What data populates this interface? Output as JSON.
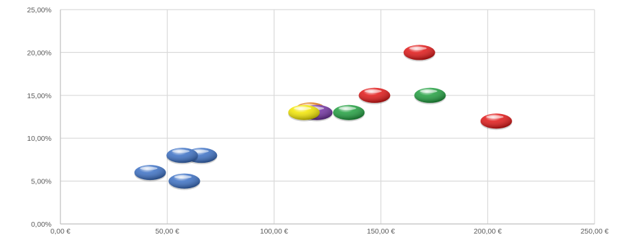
{
  "chart_data": {
    "type": "scatter",
    "title": "",
    "xlabel": "",
    "ylabel": "",
    "xlim": [
      0,
      250
    ],
    "ylim": [
      0,
      25
    ],
    "grid": true,
    "x_ticks": [
      "0,00 €",
      "50,00 €",
      "100,00 €",
      "150,00 €",
      "200,00 €",
      "250,00 €"
    ],
    "x_tick_values": [
      0,
      50,
      100,
      150,
      200,
      250
    ],
    "y_ticks": [
      "0,00%",
      "5,00%",
      "10,00%",
      "15,00%",
      "20,00%",
      "25,00%"
    ],
    "y_tick_values": [
      0,
      5,
      10,
      15,
      20,
      25
    ],
    "points": [
      {
        "x": 42,
        "y": 6,
        "color": "#3a6fc4"
      },
      {
        "x": 58,
        "y": 5,
        "color": "#3a6fc4"
      },
      {
        "x": 66,
        "y": 8,
        "color": "#3a6fc4"
      },
      {
        "x": 57,
        "y": 8,
        "color": "#3a6fc4"
      },
      {
        "x": 117,
        "y": 13.3,
        "color": "#e07a1c"
      },
      {
        "x": 120,
        "y": 13,
        "color": "#7030a0"
      },
      {
        "x": 114,
        "y": 13,
        "color": "#f2e600"
      },
      {
        "x": 135,
        "y": 13,
        "color": "#1f9e3e"
      },
      {
        "x": 147,
        "y": 15,
        "color": "#e01515"
      },
      {
        "x": 168,
        "y": 20,
        "color": "#e01515"
      },
      {
        "x": 173,
        "y": 15,
        "color": "#1f9e3e"
      },
      {
        "x": 204,
        "y": 12,
        "color": "#e01515"
      }
    ]
  }
}
